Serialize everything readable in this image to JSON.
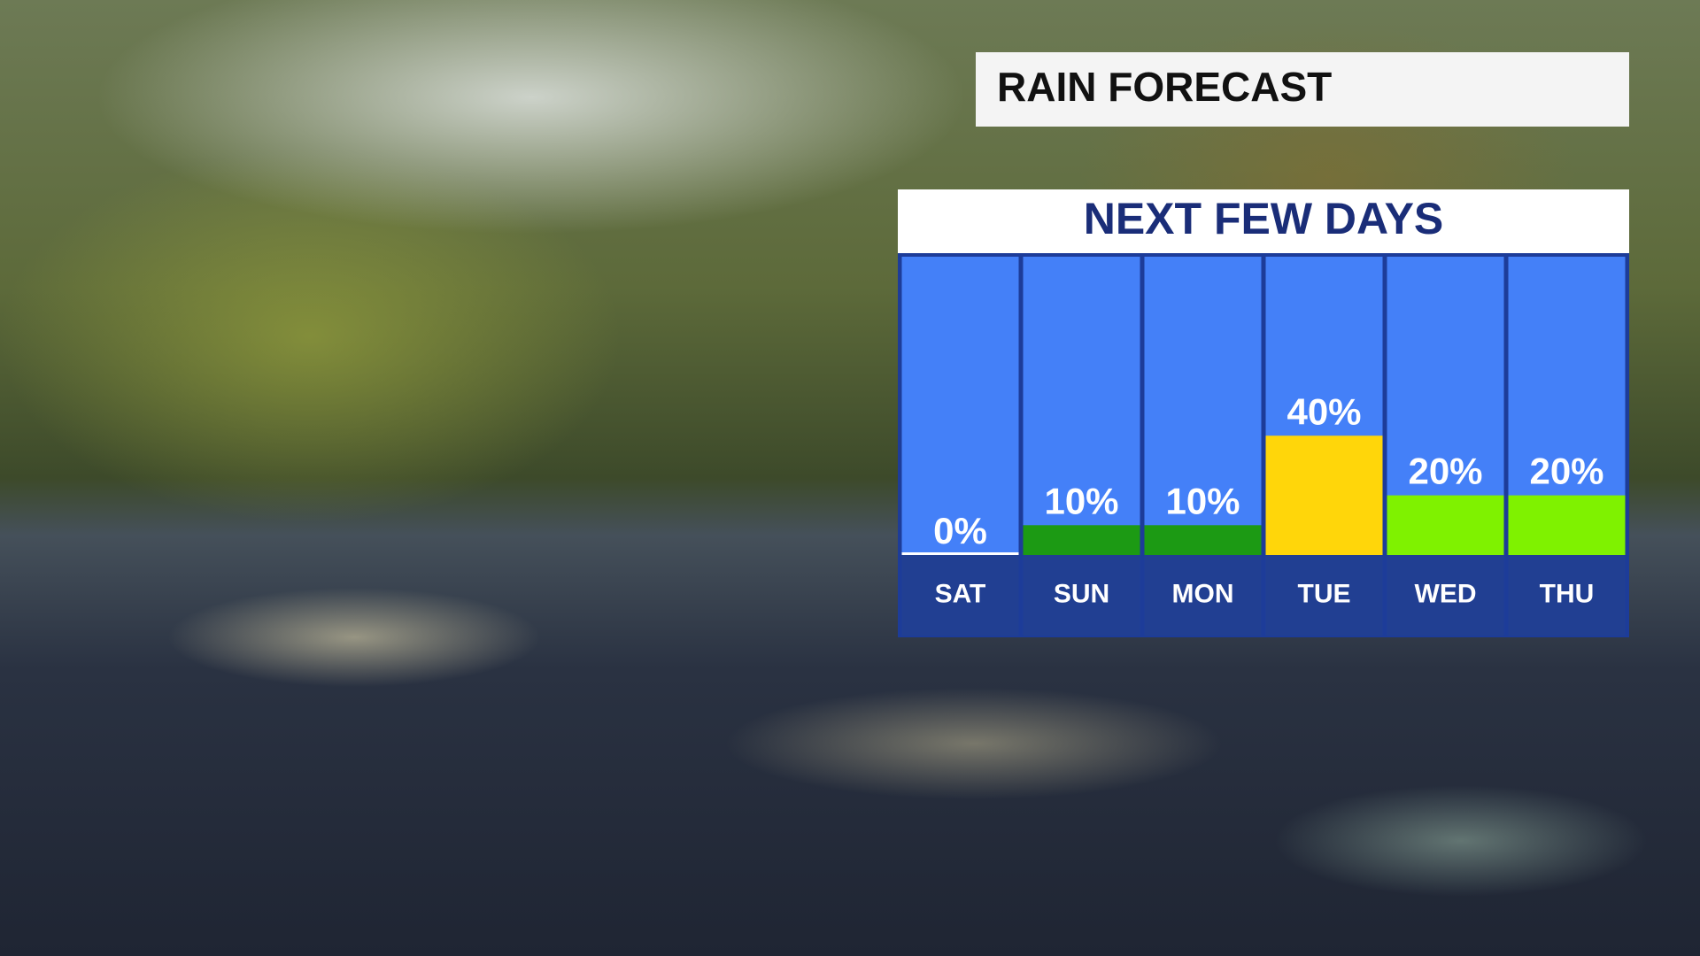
{
  "chart_data": {
    "type": "bar",
    "title": "RAIN FORECAST",
    "subtitle": "NEXT FEW DAYS",
    "categories": [
      "SAT",
      "SUN",
      "MON",
      "TUE",
      "WED",
      "THU"
    ],
    "values": [
      0,
      10,
      10,
      40,
      20,
      20
    ],
    "value_labels": [
      "0%",
      "10%",
      "10%",
      "40%",
      "20%",
      "20%"
    ],
    "colors": [
      "#ffffff",
      "#1c9a14",
      "#1c9a14",
      "#ffd60a",
      "#7ff200",
      "#7ff200"
    ],
    "ylim": [
      0,
      100
    ]
  }
}
